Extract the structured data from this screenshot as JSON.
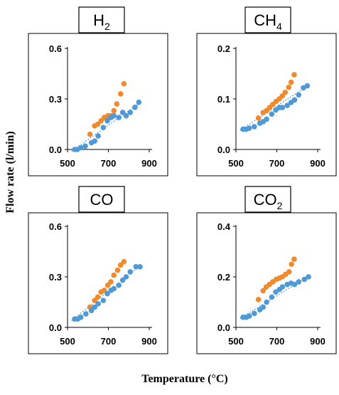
{
  "figure": {
    "ylabel": "Flow rate (l/min)",
    "xlabel": "Temperature (°C)"
  },
  "colors": {
    "series_a": "#f08a2c",
    "series_b": "#4f9ad6",
    "trend_b": "#4f9ad6",
    "frame": "#000000"
  },
  "chart_data": [
    {
      "type": "scatter",
      "title_main": "H",
      "title_sub": "2",
      "xlim": [
        500,
        900
      ],
      "xticks": [
        500,
        700,
        900
      ],
      "ylim": [
        0,
        0.6
      ],
      "yticks": [
        "0.0",
        "0.3",
        "0.6"
      ],
      "series": [
        {
          "points": [
            [
              610,
              0.09
            ],
            [
              633,
              0.14
            ],
            [
              648,
              0.15
            ],
            [
              664,
              0.17
            ],
            [
              680,
              0.19
            ],
            [
              697,
              0.2
            ],
            [
              712,
              0.2
            ],
            [
              727,
              0.23
            ],
            [
              741,
              0.27
            ],
            [
              760,
              0.33
            ],
            [
              776,
              0.39
            ]
          ]
        },
        {
          "points": [
            [
              535,
              0.0
            ],
            [
              548,
              0.0
            ],
            [
              565,
              0.01
            ],
            [
              587,
              0.02
            ],
            [
              617,
              0.04
            ],
            [
              633,
              0.05
            ],
            [
              650,
              0.08
            ],
            [
              675,
              0.13
            ],
            [
              695,
              0.17
            ],
            [
              713,
              0.19
            ],
            [
              727,
              0.2
            ],
            [
              751,
              0.19
            ],
            [
              770,
              0.22
            ],
            [
              787,
              0.2
            ],
            [
              807,
              0.22
            ],
            [
              830,
              0.25
            ],
            [
              849,
              0.28
            ]
          ]
        }
      ],
      "trend": [
        [
          520,
          -0.01
        ],
        [
          860,
          0.28
        ]
      ]
    },
    {
      "type": "scatter",
      "title_main": "CH",
      "title_sub": "4",
      "xlim": [
        500,
        900
      ],
      "xticks": [
        500,
        700,
        900
      ],
      "ylim": [
        0,
        0.2
      ],
      "yticks": [
        "0.0",
        "0.1",
        "0.2"
      ],
      "series": [
        {
          "points": [
            [
              610,
              0.062
            ],
            [
              633,
              0.073
            ],
            [
              650,
              0.077
            ],
            [
              665,
              0.083
            ],
            [
              680,
              0.089
            ],
            [
              696,
              0.095
            ],
            [
              712,
              0.1
            ],
            [
              727,
              0.106
            ],
            [
              741,
              0.113
            ],
            [
              758,
              0.123
            ],
            [
              770,
              0.133
            ],
            [
              785,
              0.148
            ]
          ]
        },
        {
          "points": [
            [
              535,
              0.04
            ],
            [
              550,
              0.04
            ],
            [
              565,
              0.042
            ],
            [
              590,
              0.045
            ],
            [
              617,
              0.052
            ],
            [
              633,
              0.055
            ],
            [
              650,
              0.06
            ],
            [
              675,
              0.07
            ],
            [
              695,
              0.078
            ],
            [
              713,
              0.083
            ],
            [
              727,
              0.083
            ],
            [
              751,
              0.087
            ],
            [
              770,
              0.093
            ],
            [
              787,
              0.098
            ],
            [
              807,
              0.108
            ],
            [
              830,
              0.122
            ],
            [
              849,
              0.126
            ]
          ]
        }
      ],
      "trend": [
        [
          520,
          0.038
        ],
        [
          860,
          0.128
        ]
      ]
    },
    {
      "type": "scatter",
      "title_main": "CO",
      "title_sub": "",
      "xlim": [
        500,
        900
      ],
      "xticks": [
        500,
        700,
        900
      ],
      "ylim": [
        0,
        0.6
      ],
      "yticks": [
        "0.0",
        "0.3",
        "0.6"
      ],
      "series": [
        {
          "points": [
            [
              610,
              0.12
            ],
            [
              633,
              0.16
            ],
            [
              648,
              0.18
            ],
            [
              664,
              0.21
            ],
            [
              680,
              0.22
            ],
            [
              697,
              0.25
            ],
            [
              712,
              0.27
            ],
            [
              727,
              0.31
            ],
            [
              745,
              0.34
            ],
            [
              760,
              0.37
            ],
            [
              776,
              0.39
            ]
          ]
        },
        {
          "points": [
            [
              535,
              0.05
            ],
            [
              550,
              0.05
            ],
            [
              565,
              0.06
            ],
            [
              590,
              0.08
            ],
            [
              617,
              0.1
            ],
            [
              633,
              0.12
            ],
            [
              650,
              0.14
            ],
            [
              675,
              0.16
            ],
            [
              695,
              0.2
            ],
            [
              713,
              0.22
            ],
            [
              727,
              0.23
            ],
            [
              751,
              0.25
            ],
            [
              770,
              0.28
            ],
            [
              787,
              0.3
            ],
            [
              807,
              0.33
            ],
            [
              835,
              0.36
            ],
            [
              855,
              0.36
            ]
          ]
        }
      ],
      "trend": [
        [
          520,
          0.04
        ],
        [
          860,
          0.37
        ]
      ]
    },
    {
      "type": "scatter",
      "title_main": "CO",
      "title_sub": "2",
      "xlim": [
        500,
        900
      ],
      "xticks": [
        500,
        700,
        900
      ],
      "ylim": [
        0,
        0.4
      ],
      "yticks": [
        "0.0",
        "0.2",
        "0.4"
      ],
      "series": [
        {
          "points": [
            [
              610,
              0.11
            ],
            [
              633,
              0.145
            ],
            [
              648,
              0.16
            ],
            [
              664,
              0.17
            ],
            [
              680,
              0.18
            ],
            [
              697,
              0.19
            ],
            [
              712,
              0.195
            ],
            [
              727,
              0.2
            ],
            [
              743,
              0.21
            ],
            [
              760,
              0.22
            ],
            [
              772,
              0.25
            ],
            [
              785,
              0.27
            ]
          ]
        },
        {
          "points": [
            [
              535,
              0.04
            ],
            [
              550,
              0.04
            ],
            [
              565,
              0.045
            ],
            [
              590,
              0.055
            ],
            [
              617,
              0.07
            ],
            [
              633,
              0.08
            ],
            [
              650,
              0.1
            ],
            [
              675,
              0.12
            ],
            [
              695,
              0.14
            ],
            [
              713,
              0.15
            ],
            [
              727,
              0.16
            ],
            [
              751,
              0.17
            ],
            [
              770,
              0.175
            ],
            [
              787,
              0.17
            ],
            [
              807,
              0.18
            ],
            [
              835,
              0.19
            ],
            [
              855,
              0.2
            ]
          ]
        }
      ],
      "trend": [
        [
          520,
          0.035
        ],
        [
          860,
          0.205
        ]
      ]
    }
  ]
}
